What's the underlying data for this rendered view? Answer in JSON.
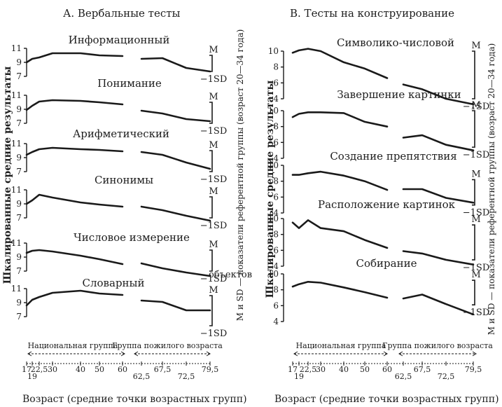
{
  "sections": [
    {
      "heading": "А. Вербальные тесты",
      "ylabel": "Шкалированные средние результаты",
      "sdlabel": "М и SD — показатели референтной группы (возраст 20—34 года)",
      "xlabel": "Возраст (средние точки возрастных групп)",
      "group_labels": [
        "Национальная группа",
        "Группа пожилого возраста"
      ]
    },
    {
      "heading": "В. Тесты на конструирование",
      "ylabel": "Шкалированные средние результаты",
      "sdlabel": "М и SD — показатели референтной группы (возраст 20—34 года)",
      "xlabel": "Возраст (средние точки возрастных групп)",
      "group_labels": [
        "Национальная группа",
        "Группа пожилого возраста"
      ]
    }
  ],
  "stray_text": "объектов",
  "chart_data": [
    {
      "type": "line",
      "heading": "А. Вербальные тесты",
      "xlabel": "Возраст (средние точки возрастных групп)",
      "ylabel": "Шкалированные средние результаты",
      "x_ticks": [
        "17",
        "19",
        "22,5",
        "30",
        "40",
        "50",
        "60",
        "62,5",
        "67,5",
        "72,5",
        "79,5"
      ],
      "bracket_labels": [
        "M",
        "−1SD"
      ],
      "panels": [
        {
          "title": "Информационный",
          "ylim": [
            7,
            11
          ],
          "yticks": [
            7,
            9,
            11
          ],
          "segments": [
            {
              "x": [
                17,
                19,
                22.5,
                30,
                40,
                50,
                60
              ],
              "y": [
                9.0,
                9.5,
                9.7,
                10.3,
                10.3,
                10.0,
                9.9
              ]
            },
            {
              "x": [
                62.5,
                67.5,
                72.5,
                79.5
              ],
              "y": [
                9.5,
                9.6,
                8.2,
                7.7
              ]
            }
          ],
          "ref_mean": 10.0,
          "ref_sd": 2.3
        },
        {
          "title": "Понимание",
          "ylim": [
            7,
            11
          ],
          "yticks": [
            7,
            9,
            11
          ],
          "segments": [
            {
              "x": [
                17,
                19,
                22.5,
                30,
                40,
                50,
                60
              ],
              "y": [
                8.9,
                9.5,
                10.1,
                10.3,
                10.2,
                10.0,
                9.7
              ]
            },
            {
              "x": [
                62.5,
                67.5,
                72.5,
                79.5
              ],
              "y": [
                8.8,
                8.4,
                7.6,
                7.3
              ]
            }
          ],
          "ref_mean": 10.0,
          "ref_sd": 3.0
        },
        {
          "title": "Арифметический",
          "ylim": [
            7,
            11
          ],
          "yticks": [
            7,
            9,
            11
          ],
          "segments": [
            {
              "x": [
                17,
                19,
                22.5,
                30,
                40,
                50,
                60
              ],
              "y": [
                9.4,
                9.8,
                10.2,
                10.4,
                10.2,
                10.1,
                9.9
              ]
            },
            {
              "x": [
                62.5,
                67.5,
                72.5,
                79.5
              ],
              "y": [
                9.8,
                9.4,
                8.3,
                7.4
              ]
            }
          ],
          "ref_mean": 10.0,
          "ref_sd": 3.0
        },
        {
          "title": "Синонимы",
          "ylim": [
            7,
            11
          ],
          "yticks": [
            7,
            9,
            11
          ],
          "segments": [
            {
              "x": [
                17,
                19,
                22.5,
                30,
                40,
                50,
                60
              ],
              "y": [
                9.0,
                9.5,
                10.3,
                9.9,
                9.2,
                8.9,
                8.6
              ]
            },
            {
              "x": [
                62.5,
                67.5,
                72.5,
                79.5
              ],
              "y": [
                8.6,
                8.1,
                7.3,
                6.6
              ]
            }
          ],
          "ref_mean": 10.0,
          "ref_sd": 3.0
        },
        {
          "title": "Числовое измерение",
          "ylim": [
            7,
            11
          ],
          "yticks": [
            7,
            9,
            11
          ],
          "segments": [
            {
              "x": [
                17,
                19,
                22.5,
                30,
                40,
                50,
                60
              ],
              "y": [
                9.6,
                9.9,
                10.0,
                9.8,
                9.2,
                8.7,
                8.0
              ]
            },
            {
              "x": [
                62.5,
                67.5,
                72.5,
                79.5
              ],
              "y": [
                8.1,
                7.4,
                6.8,
                6.3
              ]
            }
          ],
          "ref_mean": 10.0,
          "ref_sd": 3.0
        },
        {
          "title": "Словарный",
          "ylim": [
            7,
            11
          ],
          "yticks": [
            7,
            9,
            11
          ],
          "segments": [
            {
              "x": [
                17,
                19,
                22.5,
                30,
                40,
                50,
                60
              ],
              "y": [
                8.6,
                9.4,
                9.8,
                10.4,
                10.7,
                10.3,
                10.1
              ]
            },
            {
              "x": [
                62.5,
                67.5,
                72.5,
                79.5
              ],
              "y": [
                9.3,
                9.1,
                7.9,
                7.9
              ]
            }
          ],
          "ref_mean": 10.0,
          "ref_sd": 4.3
        }
      ]
    },
    {
      "type": "line",
      "heading": "В. Тесты на конструирование",
      "xlabel": "Возраст (средние точки возрастных групп)",
      "ylabel": "Шкалированные средние результаты",
      "x_ticks": [
        "17",
        "19",
        "22,5",
        "30",
        "40",
        "50",
        "60",
        "62,5",
        "67,5",
        "72,5",
        "79,5"
      ],
      "bracket_labels": [
        "M",
        "−1SD"
      ],
      "panels": [
        {
          "title": "Символико-числовой",
          "ylim": [
            4,
            10
          ],
          "yticks": [
            4,
            6,
            8,
            10
          ],
          "segments": [
            {
              "x": [
                17,
                19,
                22.5,
                30,
                40,
                50,
                60
              ],
              "y": [
                9.8,
                10.1,
                10.3,
                10.0,
                8.6,
                7.8,
                6.6
              ]
            },
            {
              "x": [
                62.5,
                67.5,
                72.5,
                79.5
              ],
              "y": [
                5.8,
                5.2,
                4.0,
                3.3
              ]
            }
          ],
          "ref_mean": 10.0,
          "ref_sd": 6.0
        },
        {
          "title": "Завершение картинки",
          "ylim": [
            4,
            10
          ],
          "yticks": [
            4,
            6,
            8,
            10
          ],
          "segments": [
            {
              "x": [
                17,
                19,
                22.5,
                30,
                40,
                50,
                60
              ],
              "y": [
                9.2,
                9.6,
                9.8,
                9.8,
                9.7,
                8.6,
                8.0
              ]
            },
            {
              "x": [
                62.5,
                67.5,
                72.5,
                79.5
              ],
              "y": [
                6.6,
                6.9,
                5.7,
                5.0
              ]
            }
          ],
          "ref_mean": 10.0,
          "ref_sd": 4.6
        },
        {
          "title": "Создание препятствия",
          "ylim": [
            4,
            10
          ],
          "yticks": [
            4,
            6,
            8,
            10
          ],
          "segments": [
            {
              "x": [
                17,
                19,
                22.5,
                30,
                40,
                50,
                60
              ],
              "y": [
                8.8,
                8.8,
                9.0,
                9.2,
                8.7,
                8.0,
                6.9
              ]
            },
            {
              "x": [
                62.5,
                67.5,
                72.5,
                79.5
              ],
              "y": [
                7.0,
                7.0,
                5.9,
                5.3
              ]
            }
          ],
          "ref_mean": 8.2,
          "ref_sd": 3.2
        },
        {
          "title": "Расположение картинок",
          "ylim": [
            4,
            10
          ],
          "yticks": [
            4,
            6,
            8,
            10
          ],
          "segments": [
            {
              "x": [
                17,
                19,
                22.5,
                30,
                40,
                50,
                60
              ],
              "y": [
                9.5,
                8.8,
                9.8,
                8.8,
                8.4,
                7.3,
                6.3
              ]
            },
            {
              "x": [
                62.5,
                67.5,
                72.5,
                79.5
              ],
              "y": [
                5.9,
                5.6,
                4.8,
                4.2
              ]
            }
          ],
          "ref_mean": 9.2,
          "ref_sd": 4.4
        },
        {
          "title": "Собирание",
          "ylim": [
            4,
            10
          ],
          "yticks": [
            4,
            6,
            8,
            10
          ],
          "segments": [
            {
              "x": [
                17,
                19,
                22.5,
                30,
                40,
                50,
                60
              ],
              "y": [
                8.4,
                8.7,
                9.0,
                8.9,
                8.3,
                7.7,
                7.0
              ]
            },
            {
              "x": [
                62.5,
                67.5,
                72.5,
                79.5
              ],
              "y": [
                6.9,
                7.4,
                6.2,
                4.9
              ]
            }
          ],
          "ref_mean": 9.2,
          "ref_sd": 3.1
        }
      ]
    }
  ]
}
